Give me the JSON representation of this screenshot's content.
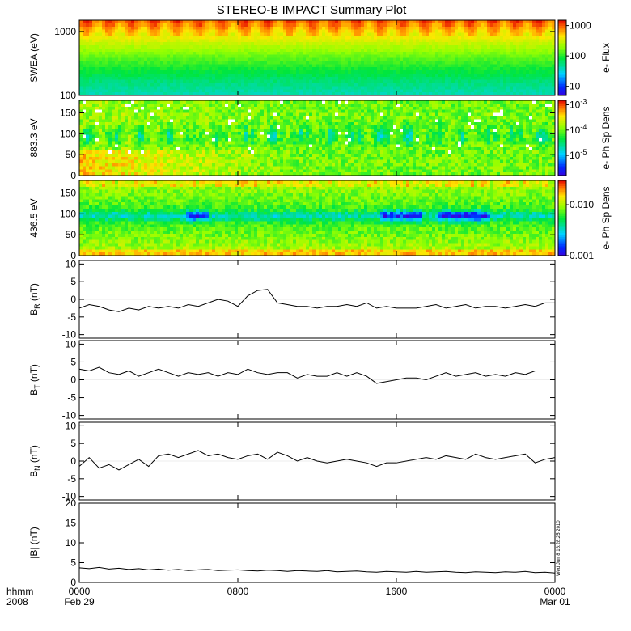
{
  "title": "STEREO-B IMPACT Summary Plot",
  "stamp": "Wed Jun  8 16:28:25 2010",
  "chart_data": [
    {
      "type": "heatmap",
      "ylabel": "SWEA (eV)",
      "ylim": [
        100,
        1500
      ],
      "log_y": true,
      "yticks": [
        {
          "v": 1000,
          "label": "1000"
        },
        {
          "v": 100,
          "label": "100"
        }
      ],
      "colorbar": {
        "label": "e- Flux",
        "log": true,
        "range": [
          5,
          1500
        ],
        "ticks": [
          {
            "v": 1000,
            "label": "1000"
          },
          {
            "v": 100,
            "label": "100"
          },
          {
            "v": 10,
            "label": "10"
          }
        ]
      }
    },
    {
      "type": "heatmap",
      "ylabel": "883.3 eV",
      "ylim": [
        0,
        180
      ],
      "yticks": [
        {
          "v": 150,
          "label": "150"
        },
        {
          "v": 100,
          "label": "100"
        },
        {
          "v": 50,
          "label": "50"
        },
        {
          "v": 0,
          "label": "0"
        }
      ],
      "colorbar": {
        "label": "e- Ph Sp Dens",
        "log": true,
        "range": [
          1.6e-06,
          0.0015
        ],
        "ticks": [
          {
            "v": 0.001,
            "label": "10",
            "sup": "-3"
          },
          {
            "v": 0.0001,
            "label": "10",
            "sup": "-4"
          },
          {
            "v": 1e-05,
            "label": "10",
            "sup": "-5"
          }
        ]
      }
    },
    {
      "type": "heatmap",
      "ylabel": "436.5 eV",
      "ylim": [
        0,
        180
      ],
      "yticks": [
        {
          "v": 150,
          "label": "150"
        },
        {
          "v": 100,
          "label": "100"
        },
        {
          "v": 50,
          "label": "50"
        },
        {
          "v": 0,
          "label": "0"
        }
      ],
      "colorbar": {
        "label": "e- Ph Sp Dens",
        "log": true,
        "range": [
          0.001,
          0.03
        ],
        "ticks": [
          {
            "v": 0.01,
            "label": "0.010"
          },
          {
            "v": 0.001,
            "label": "0.001"
          }
        ]
      }
    },
    {
      "type": "line",
      "ylabel": "B",
      "ylabel_sub": "R",
      "ylabel_unit": " (nT)",
      "ylim": [
        -11,
        11
      ],
      "yticks": [
        10,
        5,
        0,
        -5,
        -10
      ],
      "x": [
        0,
        0.5,
        1,
        1.5,
        2,
        2.5,
        3,
        3.5,
        4,
        4.5,
        5,
        5.5,
        6,
        6.5,
        7,
        7.5,
        8,
        8.5,
        9,
        9.5,
        10,
        10.5,
        11,
        11.5,
        12,
        12.5,
        13,
        13.5,
        14,
        14.5,
        15,
        15.5,
        16,
        16.5,
        17,
        17.5,
        18,
        18.5,
        19,
        19.5,
        20,
        20.5,
        21,
        21.5,
        22,
        22.5,
        23,
        23.5,
        24
      ],
      "values": [
        -2.5,
        -1.5,
        -2.0,
        -3.0,
        -3.5,
        -2.5,
        -3.0,
        -2.0,
        -2.5,
        -2.0,
        -2.5,
        -1.5,
        -2.0,
        -1.0,
        0.0,
        -0.5,
        -2.0,
        1.0,
        2.5,
        2.8,
        -1.0,
        -1.5,
        -2.0,
        -2.0,
        -2.5,
        -2.0,
        -2.0,
        -1.5,
        -2.0,
        -1.0,
        -2.5,
        -2.0,
        -2.5,
        -2.5,
        -2.5,
        -2.0,
        -1.5,
        -2.5,
        -2.0,
        -1.5,
        -2.5,
        -2.0,
        -2.0,
        -2.5,
        -2.0,
        -1.5,
        -2.0,
        -1.0,
        -1.0
      ]
    },
    {
      "type": "line",
      "ylabel": "B",
      "ylabel_sub": "T",
      "ylabel_unit": " (nT)",
      "ylim": [
        -11,
        11
      ],
      "yticks": [
        10,
        5,
        0,
        -5,
        -10
      ],
      "x": [
        0,
        0.5,
        1,
        1.5,
        2,
        2.5,
        3,
        3.5,
        4,
        4.5,
        5,
        5.5,
        6,
        6.5,
        7,
        7.5,
        8,
        8.5,
        9,
        9.5,
        10,
        10.5,
        11,
        11.5,
        12,
        12.5,
        13,
        13.5,
        14,
        14.5,
        15,
        15.5,
        16,
        16.5,
        17,
        17.5,
        18,
        18.5,
        19,
        19.5,
        20,
        20.5,
        21,
        21.5,
        22,
        22.5,
        23,
        23.5,
        24
      ],
      "values": [
        3.0,
        2.5,
        3.5,
        2.0,
        1.5,
        2.5,
        1.0,
        2.0,
        3.0,
        2.0,
        1.0,
        2.0,
        1.5,
        2.0,
        1.0,
        2.0,
        1.5,
        3.0,
        2.0,
        1.5,
        2.0,
        2.0,
        0.5,
        1.5,
        1.0,
        1.0,
        2.0,
        1.0,
        2.0,
        1.0,
        -1.0,
        -0.5,
        0.0,
        0.5,
        0.5,
        0.0,
        1.0,
        2.0,
        1.0,
        1.5,
        2.0,
        1.0,
        1.5,
        1.0,
        2.0,
        1.5,
        2.5,
        2.5,
        2.5
      ]
    },
    {
      "type": "line",
      "ylabel": "B",
      "ylabel_sub": "N",
      "ylabel_unit": " (nT)",
      "ylim": [
        -11,
        11
      ],
      "yticks": [
        10,
        5,
        0,
        -5,
        -10
      ],
      "x": [
        0,
        0.5,
        1,
        1.5,
        2,
        2.5,
        3,
        3.5,
        4,
        4.5,
        5,
        5.5,
        6,
        6.5,
        7,
        7.5,
        8,
        8.5,
        9,
        9.5,
        10,
        10.5,
        11,
        11.5,
        12,
        12.5,
        13,
        13.5,
        14,
        14.5,
        15,
        15.5,
        16,
        16.5,
        17,
        17.5,
        18,
        18.5,
        19,
        19.5,
        20,
        20.5,
        21,
        21.5,
        22,
        22.5,
        23,
        23.5,
        24
      ],
      "values": [
        -1.5,
        1.0,
        -2.0,
        -1.0,
        -2.5,
        -1.0,
        0.5,
        -1.5,
        1.5,
        2.0,
        1.0,
        2.0,
        3.0,
        1.5,
        2.0,
        1.0,
        0.5,
        1.5,
        2.0,
        0.5,
        2.5,
        1.5,
        0.0,
        1.0,
        0.0,
        -0.5,
        0.0,
        0.5,
        0.0,
        -0.5,
        -1.5,
        -0.5,
        -0.5,
        0.0,
        0.5,
        1.0,
        0.5,
        1.5,
        1.0,
        0.5,
        2.0,
        1.0,
        0.5,
        1.0,
        1.5,
        2.0,
        -0.5,
        0.5,
        1.0
      ]
    },
    {
      "type": "line",
      "ylabel": "|B| (nT)",
      "ylim": [
        0,
        20
      ],
      "yticks": [
        20,
        15,
        10,
        5,
        0
      ],
      "x": [
        0,
        0.5,
        1,
        1.5,
        2,
        2.5,
        3,
        3.5,
        4,
        4.5,
        5,
        5.5,
        6,
        6.5,
        7,
        7.5,
        8,
        8.5,
        9,
        9.5,
        10,
        10.5,
        11,
        11.5,
        12,
        12.5,
        13,
        13.5,
        14,
        14.5,
        15,
        15.5,
        16,
        16.5,
        17,
        17.5,
        18,
        18.5,
        19,
        19.5,
        20,
        20.5,
        21,
        21.5,
        22,
        22.5,
        23,
        23.5,
        24
      ],
      "values": [
        3.7,
        3.5,
        3.8,
        3.4,
        3.6,
        3.3,
        3.5,
        3.2,
        3.4,
        3.1,
        3.3,
        3.0,
        3.2,
        3.3,
        3.0,
        3.1,
        3.2,
        3.0,
        2.9,
        3.1,
        3.0,
        2.8,
        3.0,
        2.9,
        2.8,
        3.0,
        2.7,
        2.8,
        2.9,
        2.7,
        2.6,
        2.8,
        2.7,
        2.6,
        2.8,
        2.6,
        2.7,
        2.8,
        2.6,
        2.5,
        2.7,
        2.6,
        2.5,
        2.7,
        2.6,
        2.8,
        2.5,
        2.6,
        2.4
      ]
    }
  ],
  "xaxis": {
    "range": [
      0,
      24
    ],
    "header_label_1": "hhmm",
    "header_label_2": "2008",
    "ticks": [
      {
        "v": 0,
        "l1": "0000",
        "l2": "Feb 29"
      },
      {
        "v": 8,
        "l1": "0800",
        "l2": ""
      },
      {
        "v": 16,
        "l1": "1600",
        "l2": ""
      },
      {
        "v": 24,
        "l1": "0000",
        "l2": "Mar 01"
      }
    ]
  }
}
